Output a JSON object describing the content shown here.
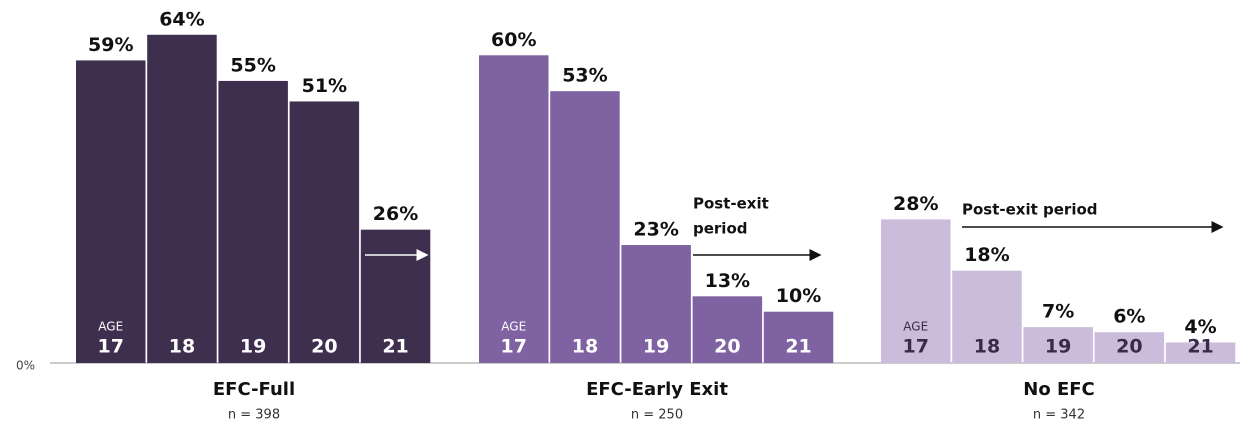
{
  "chart_data": {
    "type": "bar",
    "categories": [
      "17",
      "18",
      "19",
      "20",
      "21"
    ],
    "age_label": "AGE",
    "ylim": [
      0,
      70
    ],
    "yticks": [
      {
        "value": 0,
        "label": "0%"
      }
    ],
    "series": [
      {
        "name": "EFC-Full",
        "n_label": "n = 398",
        "color": "#3f2f4f",
        "text_color": "#ffffff",
        "values": [
          59,
          64,
          55,
          51,
          26
        ],
        "value_labels": [
          "59%",
          "64%",
          "55%",
          "51%",
          "26%"
        ]
      },
      {
        "name": "EFC-Early Exit",
        "n_label": "n = 250",
        "color": "#7f62a2",
        "text_color": "#ffffff",
        "values": [
          60,
          53,
          23,
          13,
          10
        ],
        "value_labels": [
          "60%",
          "53%",
          "23%",
          "13%",
          "10%"
        ],
        "annotation": [
          "Post-exit",
          "period"
        ]
      },
      {
        "name": "No EFC",
        "n_label": "n = 342",
        "color": "#cbbcdc",
        "text_color": "#3a2b4a",
        "values": [
          28,
          18,
          7,
          6,
          4
        ],
        "value_labels": [
          "28%",
          "18%",
          "7%",
          "6%",
          "4%"
        ],
        "annotation": [
          "Post-exit period"
        ]
      }
    ]
  }
}
